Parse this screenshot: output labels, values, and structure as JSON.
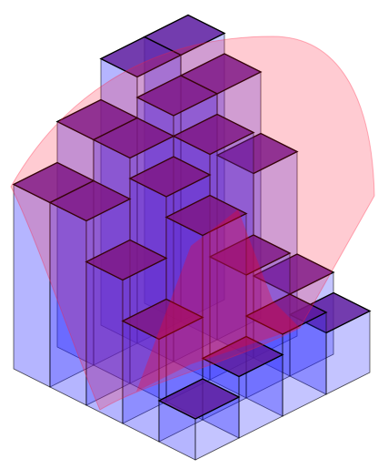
{
  "chart_data": {
    "type": "bar3d",
    "values": [
      [
        1.0,
        1.5,
        2.0,
        1.5
      ],
      [
        2.5,
        4.5,
        3.0,
        2.0
      ],
      [
        3.5,
        5.0,
        5.5,
        4.5
      ],
      [
        4.5,
        5.5,
        6.0,
        6.0
      ],
      [
        4.5,
        5.5,
        6.5,
        6.5
      ]
    ],
    "color": "#2a2aff"
  }
}
